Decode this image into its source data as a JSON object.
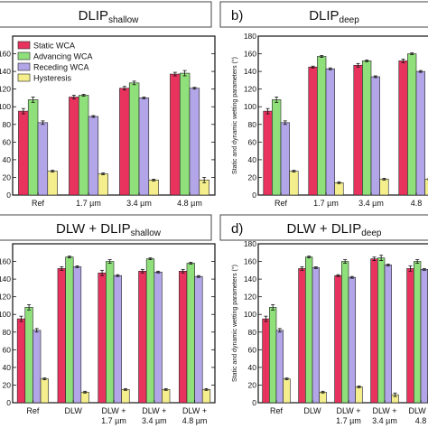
{
  "colors": {
    "static": "#e8335e",
    "advancing": "#8fe07a",
    "receding": "#b3a6e8",
    "hysteresis": "#f4ee8c"
  },
  "chart_data": [
    {
      "type": "bar",
      "panel_letter": "",
      "title_main": "DLIP",
      "title_sub": "shallow",
      "ylabel": "",
      "ylim": [
        0,
        180
      ],
      "yticks": [
        "0",
        "20",
        "40",
        "60",
        "80",
        "100",
        "120",
        "140",
        "160",
        "180"
      ],
      "categories": [
        [
          "Ref"
        ],
        [
          "1.7 µm"
        ],
        [
          "3.4 µm"
        ],
        [
          "4.8 µm"
        ]
      ],
      "legend": [
        "Static WCA",
        "Advancing WCA",
        "Receding WCA",
        "Hysteresis"
      ],
      "series": [
        {
          "name": "Static WCA",
          "values": [
            95,
            111,
            121,
            137
          ],
          "errors": [
            3,
            2,
            2,
            2
          ]
        },
        {
          "name": "Advancing WCA",
          "values": [
            108,
            113,
            127,
            138
          ],
          "errors": [
            3,
            1,
            2,
            3
          ]
        },
        {
          "name": "Receding WCA",
          "values": [
            82,
            89,
            110,
            121
          ],
          "errors": [
            2,
            1,
            1,
            1
          ]
        },
        {
          "name": "Hysteresis",
          "values": [
            27,
            24,
            17,
            17
          ],
          "errors": [
            1,
            1,
            1,
            3
          ]
        }
      ]
    },
    {
      "type": "bar",
      "panel_letter": "b)",
      "title_main": "DLIP",
      "title_sub": "deep",
      "ylabel": "Static and dynamic wetting parameters (°)",
      "ylim": [
        0,
        180
      ],
      "yticks": [
        "0",
        "20",
        "40",
        "60",
        "80",
        "100",
        "120",
        "140",
        "160",
        "180"
      ],
      "categories": [
        [
          "Ref"
        ],
        [
          "1.7 µm"
        ],
        [
          "3.4 µm"
        ],
        [
          "4.8"
        ]
      ],
      "legend": [],
      "series": [
        {
          "name": "Static WCA",
          "values": [
            95,
            145,
            147,
            152
          ],
          "errors": [
            3,
            1,
            2,
            2
          ]
        },
        {
          "name": "Advancing WCA",
          "values": [
            108,
            157,
            152,
            160
          ],
          "errors": [
            3,
            1,
            1,
            1
          ]
        },
        {
          "name": "Receding WCA",
          "values": [
            82,
            143,
            134,
            140
          ],
          "errors": [
            2,
            1,
            1,
            1
          ]
        },
        {
          "name": "Hysteresis",
          "values": [
            27,
            14,
            18,
            18
          ],
          "errors": [
            1,
            1,
            1,
            1
          ]
        }
      ]
    },
    {
      "type": "bar",
      "panel_letter": "",
      "title_main": "DLW + DLIP",
      "title_sub": "shallow",
      "ylabel": "",
      "ylim": [
        0,
        180
      ],
      "yticks": [
        "0",
        "20",
        "40",
        "60",
        "80",
        "100",
        "120",
        "140",
        "160",
        "180"
      ],
      "categories": [
        [
          "Ref"
        ],
        [
          "DLW"
        ],
        [
          "DLW +",
          "1.7 µm"
        ],
        [
          "DLW +",
          "3.4 µm"
        ],
        [
          "DLW +",
          "4.8 µm"
        ]
      ],
      "legend": [],
      "series": [
        {
          "name": "Static WCA",
          "values": [
            95,
            152,
            147,
            149,
            149
          ],
          "errors": [
            3,
            2,
            3,
            2,
            2
          ]
        },
        {
          "name": "Advancing WCA",
          "values": [
            108,
            165,
            160,
            163,
            158
          ],
          "errors": [
            3,
            1,
            2,
            1,
            1
          ]
        },
        {
          "name": "Receding WCA",
          "values": [
            82,
            154,
            144,
            148,
            143
          ],
          "errors": [
            2,
            1,
            1,
            1,
            1
          ]
        },
        {
          "name": "Hysteresis",
          "values": [
            27,
            12,
            15,
            15,
            15
          ],
          "errors": [
            1,
            1,
            1,
            1,
            1
          ]
        }
      ]
    },
    {
      "type": "bar",
      "panel_letter": "d)",
      "title_main": "DLW + DLIP",
      "title_sub": "deep",
      "ylabel": "Static and dynamic wetting parameters (°)",
      "ylim": [
        0,
        180
      ],
      "yticks": [
        "0",
        "20",
        "40",
        "60",
        "80",
        "100",
        "120",
        "140",
        "160",
        "180"
      ],
      "categories": [
        [
          "Ref"
        ],
        [
          "DLW"
        ],
        [
          "DLW +",
          "1.7 µm"
        ],
        [
          "DLW +",
          "3.4 µm"
        ],
        [
          "DLW +",
          "4.8"
        ]
      ],
      "legend": [],
      "series": [
        {
          "name": "Static WCA",
          "values": [
            95,
            152,
            144,
            163,
            152
          ],
          "errors": [
            3,
            2,
            1,
            2,
            3
          ]
        },
        {
          "name": "Advancing WCA",
          "values": [
            108,
            165,
            160,
            164,
            160
          ],
          "errors": [
            3,
            1,
            2,
            3,
            2
          ]
        },
        {
          "name": "Receding WCA",
          "values": [
            82,
            153,
            142,
            156,
            151
          ],
          "errors": [
            2,
            1,
            1,
            1,
            1
          ]
        },
        {
          "name": "Hysteresis",
          "values": [
            27,
            12,
            18,
            9,
            9
          ],
          "errors": [
            1,
            1,
            1,
            2,
            2
          ]
        }
      ]
    }
  ]
}
